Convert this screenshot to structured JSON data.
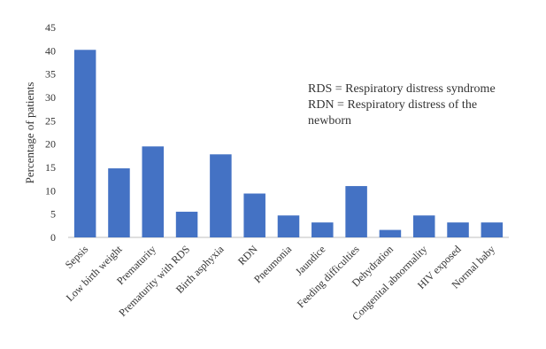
{
  "chart_data": {
    "type": "bar",
    "y_label": "Percentage of patients",
    "annotation": [
      "RDS = Respiratory distress syndrome",
      "RDN = Respiratory distress of the",
      "newborn"
    ],
    "categories": [
      "Sepsis",
      "Low birth weight",
      "Prematurity",
      "Prematurity with RDS",
      "Birth asphyxia",
      "RDN",
      "Pneumonia",
      "Jaundice",
      "Feeding difficulties",
      "Dehydration",
      "Congenital abnormality",
      "HIV exposed",
      "Normal baby"
    ],
    "values": [
      40.2,
      14.8,
      19.5,
      5.5,
      17.8,
      9.4,
      4.7,
      3.2,
      11.0,
      1.6,
      4.7,
      3.2,
      3.2
    ],
    "color": "#4472c4",
    "ylim": [
      0,
      45
    ],
    "yticks": [
      0,
      5,
      10,
      15,
      20,
      25,
      30,
      35,
      40,
      45
    ],
    "grid": false
  }
}
